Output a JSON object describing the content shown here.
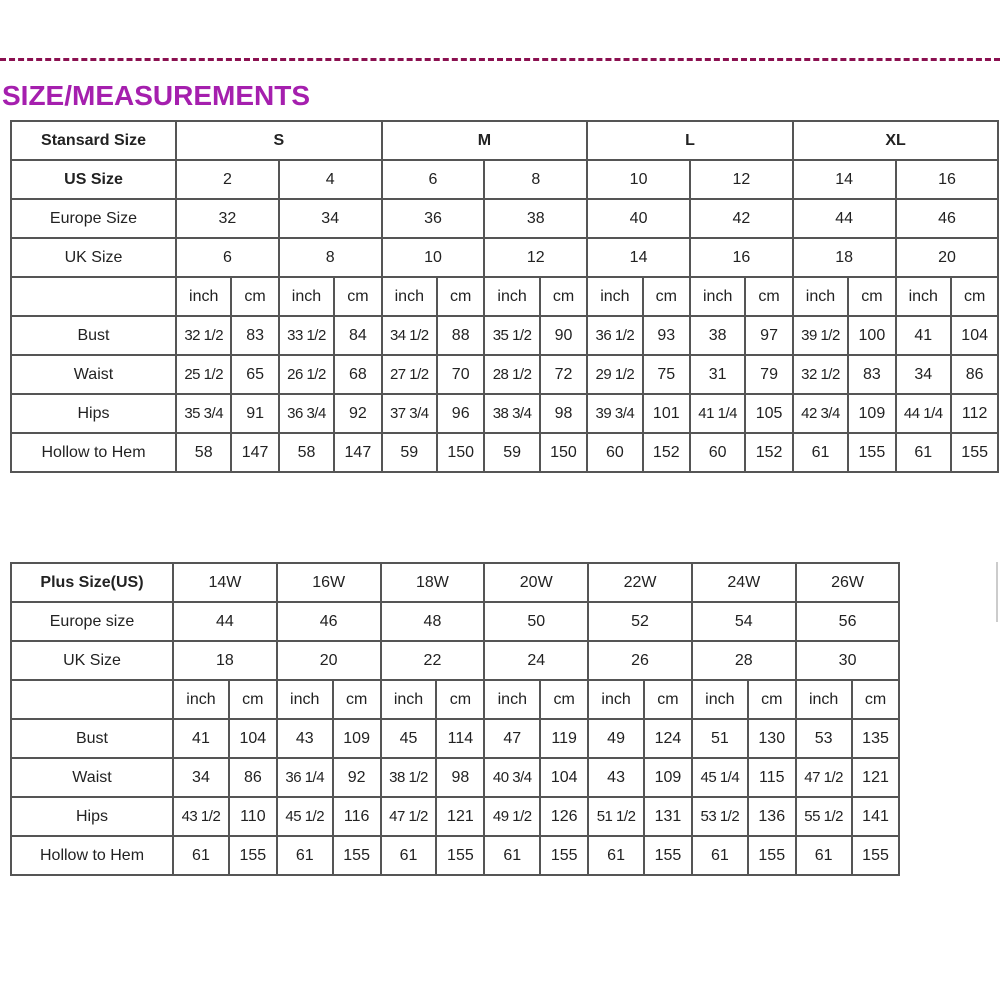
{
  "title": "SIZE/MEASUREMENTS",
  "colors": {
    "title": "#a51fae",
    "divider": "#8a1050",
    "grid": "#555555"
  },
  "standard_table": {
    "header_label": "Stansard Size",
    "size_groups": [
      "S",
      "M",
      "L",
      "XL"
    ],
    "rows": [
      {
        "label": "US Size",
        "values": [
          "2",
          "4",
          "6",
          "8",
          "10",
          "12",
          "14",
          "16"
        ]
      },
      {
        "label": "Europe Size",
        "values": [
          "32",
          "34",
          "36",
          "38",
          "40",
          "42",
          "44",
          "46"
        ]
      },
      {
        "label": "UK Size",
        "values": [
          "6",
          "8",
          "10",
          "12",
          "14",
          "16",
          "18",
          "20"
        ]
      }
    ],
    "unit_labels": [
      "inch",
      "cm"
    ],
    "measurements": [
      {
        "label": "Bust",
        "values": [
          "32 1/2",
          "83",
          "33 1/2",
          "84",
          "34 1/2",
          "88",
          "35 1/2",
          "90",
          "36 1/2",
          "93",
          "38",
          "97",
          "39 1/2",
          "100",
          "41",
          "104"
        ]
      },
      {
        "label": "Waist",
        "values": [
          "25 1/2",
          "65",
          "26 1/2",
          "68",
          "27 1/2",
          "70",
          "28 1/2",
          "72",
          "29 1/2",
          "75",
          "31",
          "79",
          "32 1/2",
          "83",
          "34",
          "86"
        ]
      },
      {
        "label": "Hips",
        "values": [
          "35 3/4",
          "91",
          "36 3/4",
          "92",
          "37 3/4",
          "96",
          "38 3/4",
          "98",
          "39 3/4",
          "101",
          "41 1/4",
          "105",
          "42 3/4",
          "109",
          "44 1/4",
          "112"
        ]
      },
      {
        "label": "Hollow to Hem",
        "values": [
          "58",
          "147",
          "58",
          "147",
          "59",
          "150",
          "59",
          "150",
          "60",
          "152",
          "60",
          "152",
          "61",
          "155",
          "61",
          "155"
        ]
      }
    ]
  },
  "plus_table": {
    "header_label": "Plus Size(US)",
    "sizes": [
      "14W",
      "16W",
      "18W",
      "20W",
      "22W",
      "24W",
      "26W"
    ],
    "rows": [
      {
        "label": "Europe size",
        "values": [
          "44",
          "46",
          "48",
          "50",
          "52",
          "54",
          "56"
        ]
      },
      {
        "label": "UK Size",
        "values": [
          "18",
          "20",
          "22",
          "24",
          "26",
          "28",
          "30"
        ]
      }
    ],
    "unit_labels": [
      "inch",
      "cm"
    ],
    "measurements": [
      {
        "label": "Bust",
        "values": [
          "41",
          "104",
          "43",
          "109",
          "45",
          "114",
          "47",
          "119",
          "49",
          "124",
          "51",
          "130",
          "53",
          "135"
        ]
      },
      {
        "label": "Waist",
        "values": [
          "34",
          "86",
          "36 1/4",
          "92",
          "38 1/2",
          "98",
          "40 3/4",
          "104",
          "43",
          "109",
          "45 1/4",
          "115",
          "47 1/2",
          "121"
        ]
      },
      {
        "label": "Hips",
        "values": [
          "43 1/2",
          "110",
          "45 1/2",
          "116",
          "47 1/2",
          "121",
          "49 1/2",
          "126",
          "51 1/2",
          "131",
          "53 1/2",
          "136",
          "55 1/2",
          "141"
        ]
      },
      {
        "label": "Hollow to Hem",
        "values": [
          "61",
          "155",
          "61",
          "155",
          "61",
          "155",
          "61",
          "155",
          "61",
          "155",
          "61",
          "155",
          "61",
          "155"
        ]
      }
    ]
  }
}
